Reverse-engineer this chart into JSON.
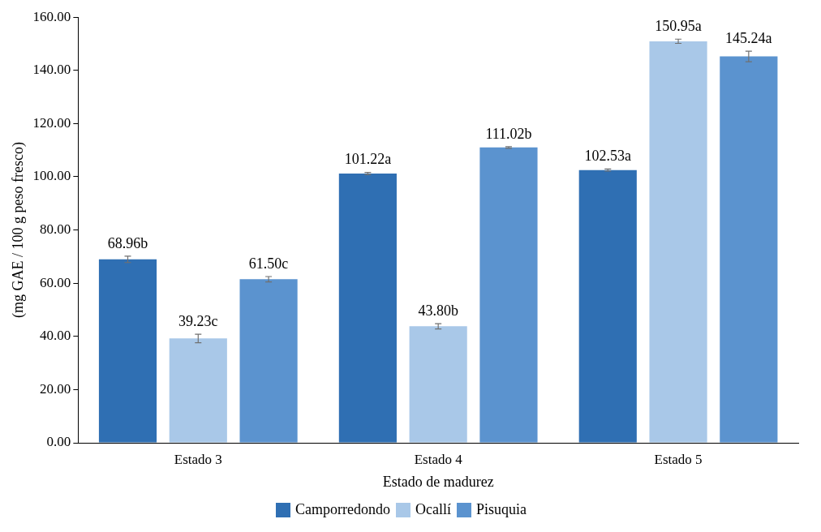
{
  "chart_data": {
    "type": "bar",
    "xlabel": "Estado de madurez",
    "ylabel": "(mg GAE / 100 g peso fresco)",
    "categories": [
      "Estado 3",
      "Estado 4",
      "Estado 5"
    ],
    "series": [
      {
        "name": "Camporredondo",
        "color": "#2f6fb3",
        "values": [
          68.96,
          101.22,
          102.53
        ],
        "errors": [
          1.2,
          0.4,
          0.4
        ],
        "value_labels": [
          "68.96b",
          "101.22a",
          "102.53a"
        ]
      },
      {
        "name": "Ocallí",
        "color": "#a9c8e8",
        "values": [
          39.23,
          43.8,
          150.95
        ],
        "errors": [
          1.6,
          1.0,
          0.8
        ],
        "value_labels": [
          "39.23c",
          "43.80b",
          "150.95a"
        ]
      },
      {
        "name": "Pisuquia",
        "color": "#5b93cf",
        "values": [
          61.5,
          111.02,
          145.24
        ],
        "errors": [
          1.0,
          0.3,
          2.0
        ],
        "value_labels": [
          "61.50c",
          "111.02b",
          "145.24a"
        ]
      }
    ],
    "ylim": [
      0,
      160
    ],
    "yticks": [
      {
        "value": 0,
        "label": "0.00"
      },
      {
        "value": 20,
        "label": "20.00"
      },
      {
        "value": 40,
        "label": "40.00"
      },
      {
        "value": 60,
        "label": "60.00"
      },
      {
        "value": 80,
        "label": "80.00"
      },
      {
        "value": 100,
        "label": "100.00"
      },
      {
        "value": 120,
        "label": "120.00"
      },
      {
        "value": 140,
        "label": "140.00"
      },
      {
        "value": 160,
        "label": "160.00"
      }
    ],
    "grid": false,
    "legend": "bottom"
  }
}
